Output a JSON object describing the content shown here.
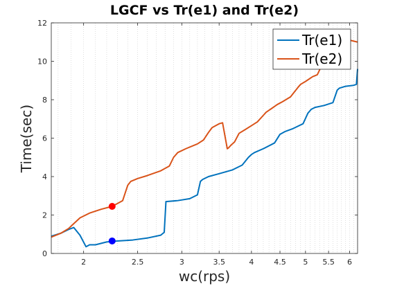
{
  "chart_data": {
    "type": "line",
    "title": "LGCF vs Tr(e1) and Tr(e2)",
    "xlabel": "wc(rps)",
    "ylabel": "Time(sec)",
    "x_scale": "log",
    "xlim": [
      1.75,
      6.2
    ],
    "ylim": [
      0,
      12
    ],
    "x_ticks": [
      2,
      2.5,
      3,
      3.5,
      4,
      4.5,
      5,
      5.5,
      6
    ],
    "x_tick_labels": [
      "2",
      "2.5",
      "3",
      "3.5",
      "4",
      "4.5",
      "5",
      "5.5",
      "6"
    ],
    "y_ticks": [
      0,
      2,
      4,
      6,
      8,
      10,
      12
    ],
    "y_tick_labels": [
      "0",
      "2",
      "4",
      "6",
      "8",
      "10",
      "12"
    ],
    "grid": "x-minor dotted",
    "legend_position": "top-right",
    "series": [
      {
        "name": "Tr(e1)",
        "color": "#0072BD",
        "x": [
          1.75,
          1.82,
          1.88,
          1.92,
          1.97,
          2.02,
          2.05,
          2.1,
          2.2,
          2.3,
          2.45,
          2.6,
          2.75,
          2.79,
          2.81,
          2.95,
          3.1,
          3.2,
          3.24,
          3.27,
          3.35,
          3.5,
          3.7,
          3.85,
          3.95,
          4.0,
          4.05,
          4.2,
          4.4,
          4.5,
          4.6,
          4.75,
          4.95,
          5.05,
          5.12,
          5.2,
          5.4,
          5.6,
          5.7,
          5.75,
          5.9,
          6.1,
          6.17,
          6.2
        ],
        "y": [
          0.9,
          1.05,
          1.25,
          1.35,
          0.95,
          0.35,
          0.45,
          0.45,
          0.6,
          0.65,
          0.7,
          0.8,
          0.95,
          1.1,
          2.7,
          2.75,
          2.85,
          3.05,
          3.75,
          3.85,
          4.0,
          4.15,
          4.35,
          4.6,
          5.0,
          5.15,
          5.25,
          5.45,
          5.75,
          6.2,
          6.35,
          6.5,
          6.75,
          7.3,
          7.5,
          7.6,
          7.7,
          7.85,
          8.5,
          8.6,
          8.7,
          8.75,
          8.8,
          9.6
        ]
      },
      {
        "name": "Tr(e2)",
        "color": "#D95319",
        "x": [
          1.75,
          1.82,
          1.88,
          1.92,
          1.97,
          2.05,
          2.15,
          2.25,
          2.3,
          2.35,
          2.4,
          2.43,
          2.5,
          2.6,
          2.75,
          2.85,
          2.9,
          2.95,
          3.05,
          3.2,
          3.28,
          3.35,
          3.4,
          3.5,
          3.55,
          3.62,
          3.64,
          3.68,
          3.73,
          3.8,
          3.9,
          4.0,
          4.1,
          4.25,
          4.35,
          4.45,
          4.55,
          4.7,
          4.85,
          4.9,
          5.0,
          5.15,
          5.25,
          5.3,
          5.35,
          5.5,
          5.7,
          6.0,
          6.2
        ],
        "y": [
          0.85,
          1.05,
          1.3,
          1.55,
          1.85,
          2.1,
          2.3,
          2.45,
          2.6,
          2.75,
          3.55,
          3.75,
          3.9,
          4.05,
          4.3,
          4.55,
          5.0,
          5.25,
          5.45,
          5.7,
          5.9,
          6.3,
          6.55,
          6.75,
          6.8,
          5.45,
          5.5,
          5.65,
          5.8,
          6.25,
          6.45,
          6.65,
          6.85,
          7.35,
          7.55,
          7.75,
          7.9,
          8.15,
          8.65,
          8.8,
          8.95,
          9.2,
          9.3,
          9.55,
          10.15,
          10.5,
          10.85,
          11.1,
          11.0
        ]
      }
    ],
    "markers": [
      {
        "x": 2.25,
        "y": 2.45,
        "color": "#FF0000"
      },
      {
        "x": 2.25,
        "y": 0.65,
        "color": "#0000FF"
      }
    ]
  }
}
